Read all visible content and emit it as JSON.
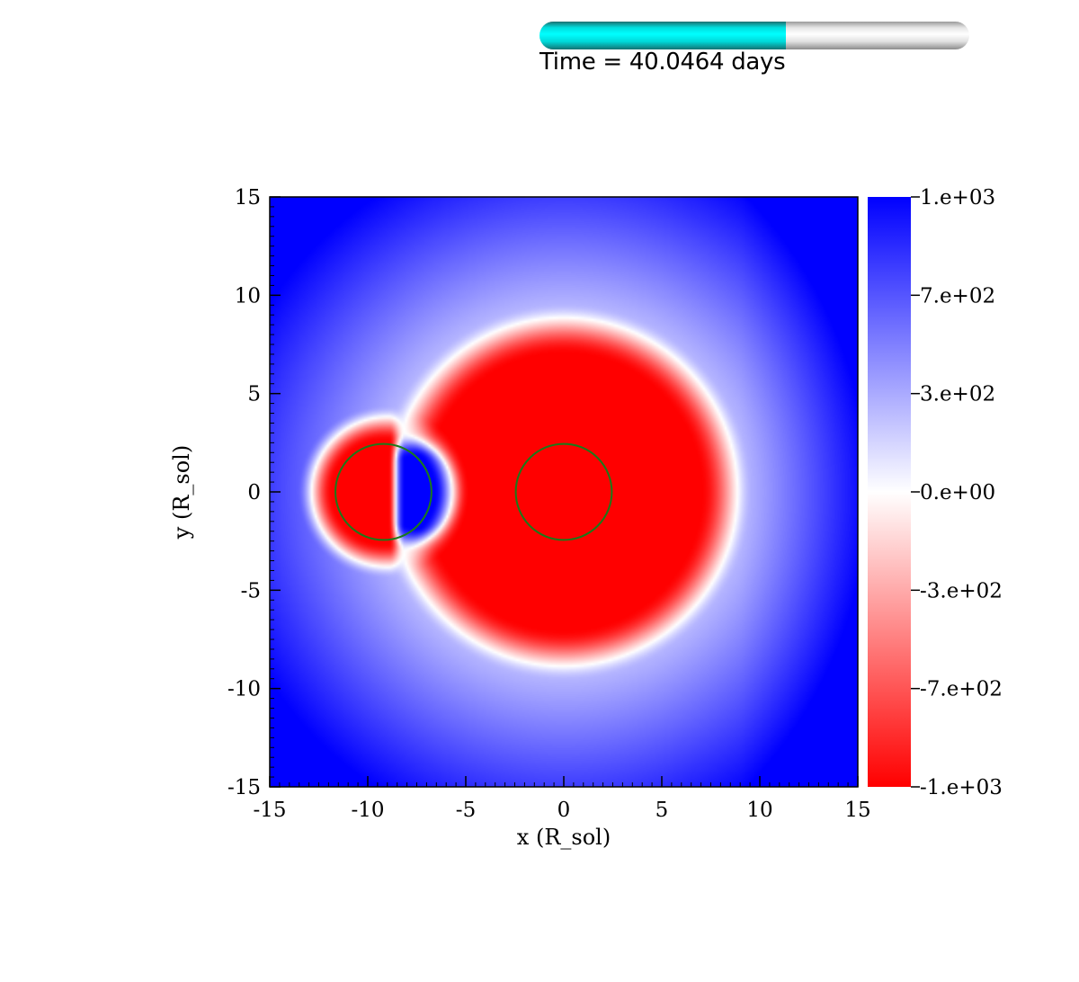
{
  "progress": {
    "fraction": 0.573,
    "fill_color": "#00ffff",
    "track_color": "#e6e6e6"
  },
  "time_label": "Time = 40.0464 days",
  "chart_data": {
    "type": "heatmap",
    "title": "",
    "xlabel": "x (R_sol)",
    "ylabel": "y (R_sol)",
    "xlim": [
      -15,
      15
    ],
    "ylim": [
      -15,
      15
    ],
    "x_ticks": [
      -15,
      -10,
      -5,
      0,
      5,
      10,
      15
    ],
    "x_tick_labels": [
      "-15",
      "-10",
      "-5",
      "0",
      "5",
      "10",
      "15"
    ],
    "y_ticks": [
      15,
      10,
      5,
      0,
      -5,
      -10,
      -15
    ],
    "y_tick_labels": [
      "15",
      "10",
      "5",
      "0",
      "-5",
      "-10",
      "-15"
    ],
    "colorbar": {
      "min": -1000,
      "max": 1000,
      "min_color": "#ff0000",
      "mid_color": "#ffffff",
      "max_color": "#0000ff",
      "ticks": [
        1000,
        666.7,
        333.3,
        0,
        -333.3,
        -666.7,
        -1000
      ],
      "tick_labels": [
        "1.e+03",
        "7.e+02",
        "3.e+02",
        "0.e+00",
        "-3.e+02",
        "-7.e+02",
        "-1.e+03"
      ]
    },
    "features": [
      {
        "shape": "circle",
        "cx": 0,
        "cy": 0,
        "r": 9.3,
        "value": -1000
      },
      {
        "shape": "circle",
        "cx": -9.2,
        "cy": 0,
        "r": 4.2,
        "value": -1000
      },
      {
        "shape": "circle",
        "cx": -7.5,
        "cy": 0,
        "r": 2.0,
        "value": 1000
      }
    ],
    "overlays": [
      {
        "shape": "circle",
        "cx": -9.2,
        "cy": 0,
        "r": 2.45,
        "color": "#1a7a1a"
      },
      {
        "shape": "circle",
        "cx": 0,
        "cy": 0,
        "r": 2.45,
        "color": "#1a7a1a"
      }
    ]
  }
}
